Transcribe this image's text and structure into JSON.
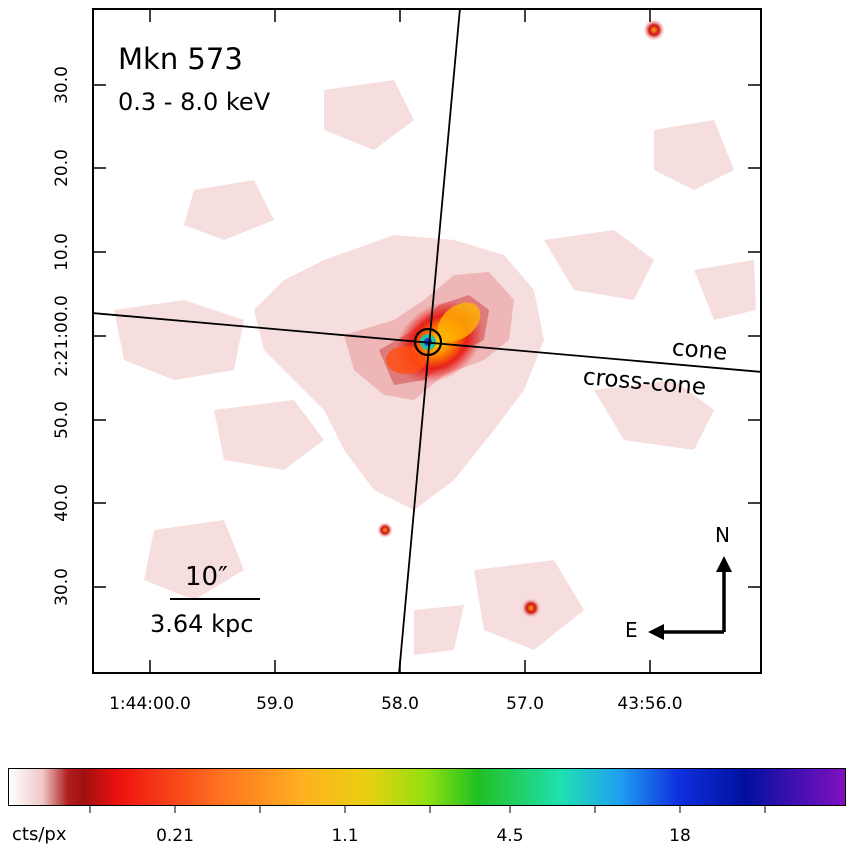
{
  "image": {
    "object": "Mkn 573",
    "band": "0.3 - 8.0 keV",
    "cone_label": "cone",
    "crosscone_label": "cross-cone",
    "scalebar_angle": "10″",
    "scalebar_distance": "3.64 kpc",
    "north_label": "N",
    "east_label": "E"
  },
  "axes": {
    "x_ticks": [
      "1:44:00.0",
      "59.0",
      "58.0",
      "57.0",
      "43:56.0"
    ],
    "y_ticks": [
      "30.0",
      "20.0",
      "10.0",
      "2:21:00.0",
      "50.0",
      "40.0",
      "30.0"
    ]
  },
  "colorbar": {
    "unit": "cts/px",
    "ticks": [
      "0.21",
      "1.1",
      "4.5",
      "18"
    ]
  }
}
